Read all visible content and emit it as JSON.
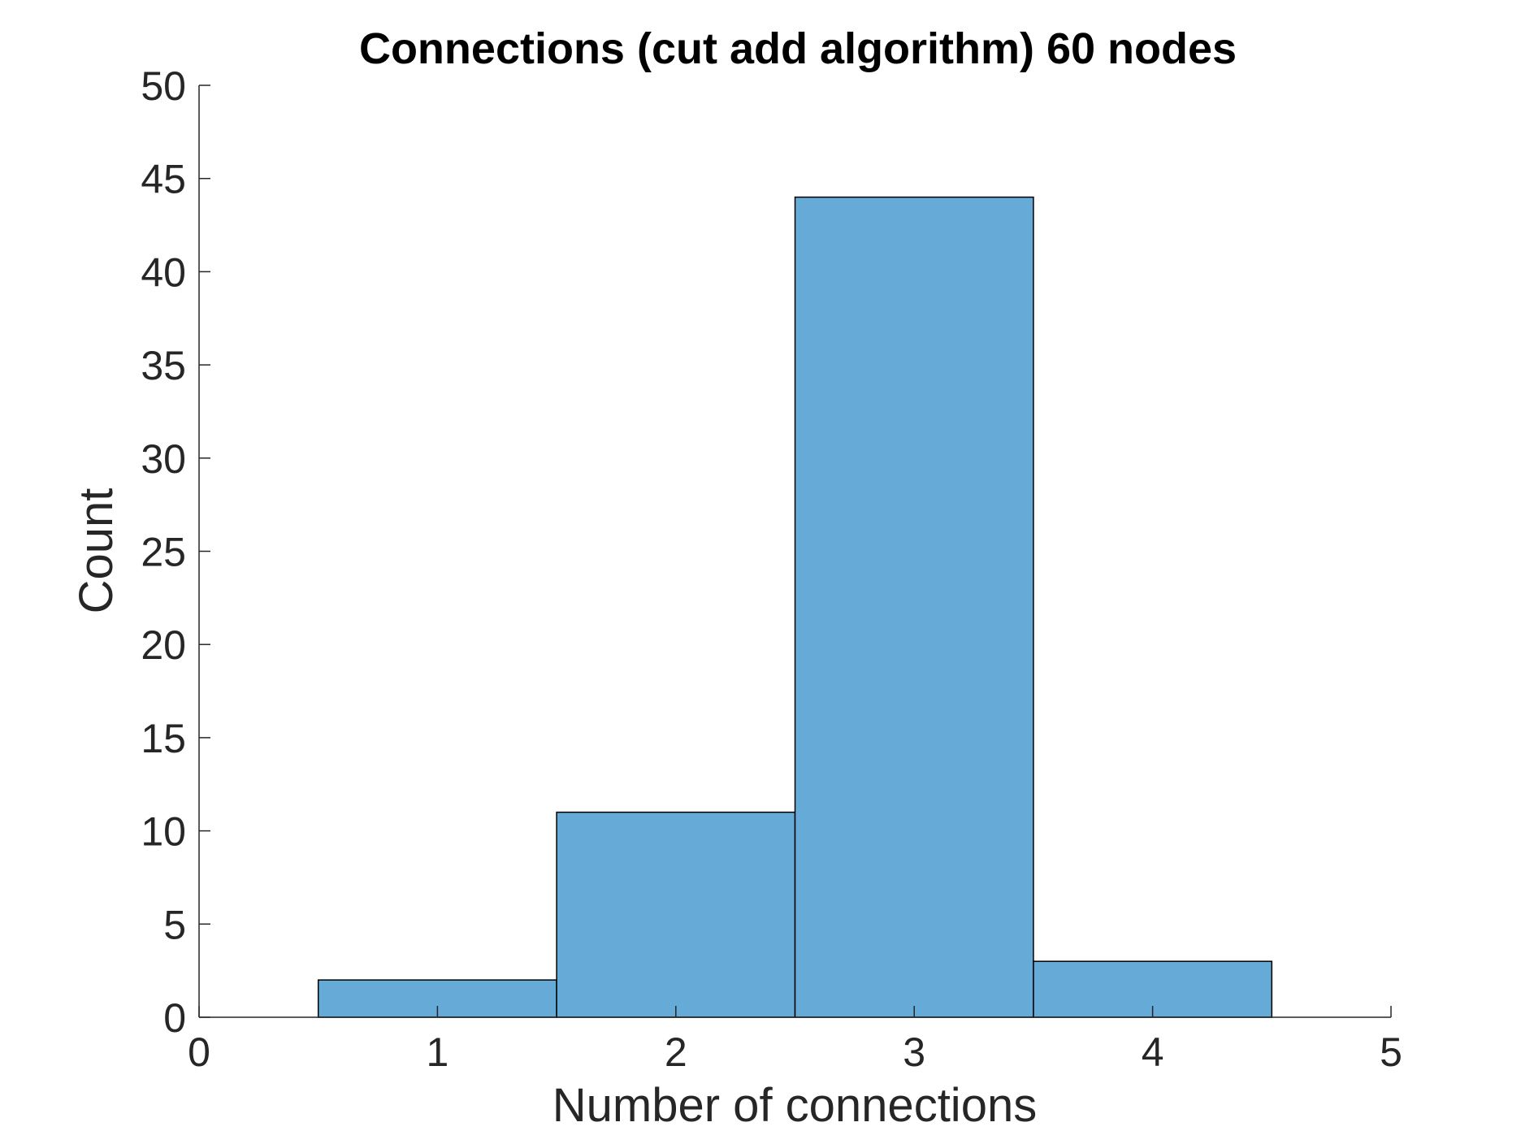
{
  "chart_data": {
    "type": "bar",
    "title": "Connections (cut add algorithm) 60 nodes",
    "xlabel": "Number of connections",
    "ylabel": "Count",
    "xlim": [
      0,
      5
    ],
    "ylim": [
      0,
      50
    ],
    "x_ticks": [
      0,
      1,
      2,
      3,
      4,
      5
    ],
    "y_ticks": [
      0,
      5,
      10,
      15,
      20,
      25,
      30,
      35,
      40,
      45,
      50
    ],
    "bin_width": 1,
    "categories": [
      1,
      2,
      3,
      4
    ],
    "values": [
      2,
      11,
      44,
      3
    ],
    "bar_color": "#66aad7",
    "edge_color": "#000000",
    "grid": false,
    "legend": "none"
  }
}
